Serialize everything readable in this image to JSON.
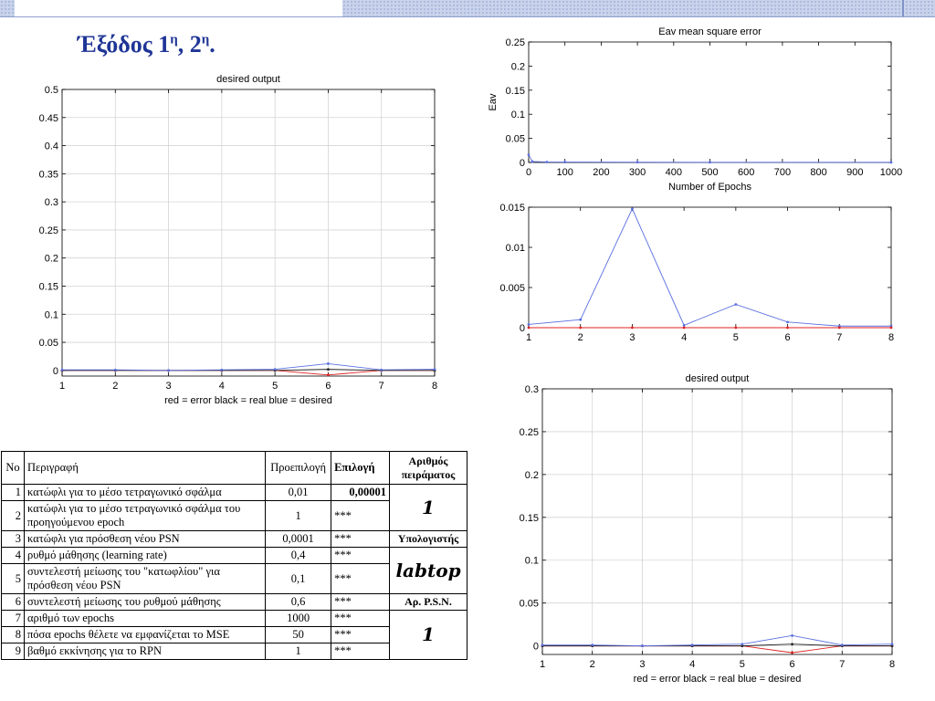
{
  "slide": {
    "title_main": "Έξόδος 1",
    "title_sup1": "η",
    "title_sep": ", 2",
    "title_sup2": "η",
    "title_end": "."
  },
  "chart_data": [
    {
      "id": "left",
      "type": "line",
      "title": "desired output",
      "xlabel": "red = error      black = real      blue = desired",
      "ylabel": "",
      "xlim": [
        1,
        8
      ],
      "ylim": [
        -0.01,
        0.5
      ],
      "xticks": [
        1,
        2,
        3,
        4,
        5,
        6,
        7,
        8
      ],
      "xtick_labels": [
        "1",
        "2",
        "3",
        "4",
        "5",
        "6",
        "7",
        "8"
      ],
      "yticks": [
        0,
        0.05,
        0.1,
        0.15,
        0.2,
        0.25,
        0.3,
        0.35,
        0.4,
        0.45,
        0.5
      ],
      "ytick_labels": [
        "0",
        "0.05",
        "0.1",
        "0.15",
        "0.2",
        "0.25",
        "0.3",
        "0.35",
        "0.4",
        "0.45",
        "0.5"
      ],
      "grid": true,
      "x": [
        1,
        2,
        3,
        4,
        5,
        6,
        7,
        8
      ],
      "series": [
        {
          "values": [
            0,
            0,
            0,
            0,
            0,
            -0.008,
            0,
            0
          ],
          "color": "#e02020"
        },
        {
          "values": [
            0,
            0,
            0,
            0,
            0,
            0.002,
            0,
            0
          ],
          "color": "#222222"
        },
        {
          "values": [
            0.001,
            0.001,
            0,
            0.001,
            0.002,
            0.012,
            0.001,
            0.002
          ],
          "color": "#5b6fe0"
        }
      ]
    },
    {
      "id": "eav",
      "type": "line",
      "title": "Eav mean square error",
      "xlabel": "Number of Epochs",
      "ylabel": "Eav",
      "xlim": [
        0,
        1000
      ],
      "ylim": [
        0,
        0.25
      ],
      "xticks": [
        0,
        100,
        200,
        300,
        400,
        500,
        600,
        700,
        800,
        900,
        1000
      ],
      "xtick_labels": [
        "0",
        "100",
        "200",
        "300",
        "400",
        "500",
        "600",
        "700",
        "800",
        "900",
        "1000"
      ],
      "yticks": [
        0,
        0.05,
        0.1,
        0.15,
        0.2,
        0.25
      ],
      "ytick_labels": [
        "0",
        "0.05",
        "0.1",
        "0.15",
        "0.2",
        "0.25"
      ],
      "grid": false,
      "x": [
        0,
        10,
        50,
        100,
        300,
        500,
        1000
      ],
      "series": [
        {
          "values": [
            0.016,
            0.002,
            0.001,
            0.0008,
            0.0005,
            0.0004,
            0.0003
          ],
          "color": "#5b6fe0"
        }
      ]
    },
    {
      "id": "mid",
      "type": "line",
      "title": "",
      "xlabel": "",
      "ylabel": "",
      "xlim": [
        1,
        8
      ],
      "ylim": [
        0,
        0.015
      ],
      "xticks": [
        1,
        2,
        3,
        4,
        5,
        6,
        7,
        8
      ],
      "xtick_labels": [
        "1",
        "2",
        "3",
        "4",
        "5",
        "6",
        "7",
        "8"
      ],
      "yticks": [
        0,
        0.005,
        0.01,
        0.015
      ],
      "ytick_labels": [
        "0",
        "0.005",
        "0.01",
        "0.015"
      ],
      "grid": false,
      "x": [
        1,
        2,
        3,
        4,
        5,
        6,
        7,
        8
      ],
      "series": [
        {
          "values": [
            0.0004,
            0.001,
            0.0148,
            0.0003,
            0.0029,
            0.0007,
            0.0002,
            0.0002
          ],
          "color": "#5b6fe0"
        },
        {
          "values": [
            0,
            0,
            0,
            0,
            0,
            0,
            0,
            0
          ],
          "color": "#e02020"
        }
      ]
    },
    {
      "id": "bottom",
      "type": "line",
      "title": "desired output",
      "xlabel": "red = error      black = real      blue = desired",
      "ylabel": "",
      "xlim": [
        1,
        8
      ],
      "ylim": [
        -0.01,
        0.3
      ],
      "xticks": [
        1,
        2,
        3,
        4,
        5,
        6,
        7,
        8
      ],
      "xtick_labels": [
        "1",
        "2",
        "3",
        "4",
        "5",
        "6",
        "7",
        "8"
      ],
      "yticks": [
        0,
        0.05,
        0.1,
        0.15,
        0.2,
        0.25,
        0.3
      ],
      "ytick_labels": [
        "0",
        "0.05",
        "0.1",
        "0.15",
        "0.2",
        "0.25",
        "0.3"
      ],
      "grid": true,
      "x": [
        1,
        2,
        3,
        4,
        5,
        6,
        7,
        8
      ],
      "series": [
        {
          "values": [
            0,
            0,
            0,
            0,
            0,
            -0.008,
            0,
            0
          ],
          "color": "#e02020"
        },
        {
          "values": [
            0,
            0,
            0,
            0,
            0,
            0.002,
            0,
            0
          ],
          "color": "#222222"
        },
        {
          "values": [
            0.001,
            0.001,
            0,
            0.001,
            0.002,
            0.012,
            0.001,
            0.002
          ],
          "color": "#5b6fe0"
        }
      ]
    }
  ],
  "table": {
    "headers": {
      "no": "No",
      "desc": "Περιγραφή",
      "default": "Προεπιλογή",
      "choice": "Επιλογή",
      "exp": "Αριθμός πειράματος"
    },
    "rows": [
      {
        "no": "1",
        "desc": "κατώφλι για το μέσο τετραγωνικό σφάλμα",
        "default": "0,01",
        "choice": "0,00001"
      },
      {
        "no": "2",
        "desc": "κατώφλι για το μέσο τετραγωνικό σφάλμα του προηγούμενου epoch",
        "default": "1",
        "choice": "***"
      },
      {
        "no": "3",
        "desc": "κατώφλι για πρόσθεση νέου PSN",
        "default": "0,0001",
        "choice": "***"
      },
      {
        "no": "4",
        "desc": "ρυθμό μάθησης (learning rate)",
        "default": "0,4",
        "choice": "***"
      },
      {
        "no": "5",
        "desc": "συντελεστή μείωσης του \"κατωφλίου\" για πρόσθεση νέου PSN",
        "default": "0,1",
        "choice": "***"
      },
      {
        "no": "6",
        "desc": "συντελεστή μείωσης του ρυθμού μάθησης",
        "default": "0,6",
        "choice": "***"
      },
      {
        "no": "7",
        "desc": "αριθμό των epochs",
        "default": "1000",
        "choice": "***"
      },
      {
        "no": "8",
        "desc": "πόσα epochs θέλετε να εμφανίζεται το MSE",
        "default": "50",
        "choice": "***"
      },
      {
        "no": "9",
        "desc": "βαθμό εκκίνησης για το RPN",
        "default": "1",
        "choice": "***"
      }
    ],
    "side": {
      "exp_value": "1",
      "computer_label": "Υπολογιστής",
      "computer_value": "labtop",
      "psn_label": "Αρ. P.S.N.",
      "psn_value": "1"
    }
  }
}
